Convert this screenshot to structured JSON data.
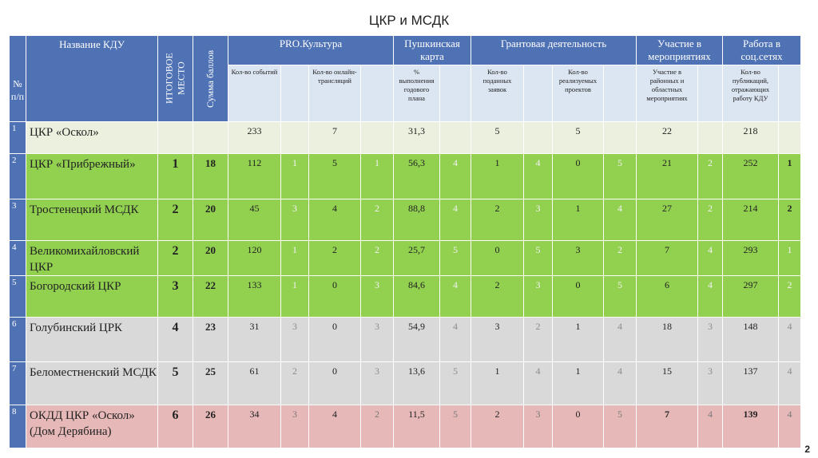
{
  "title": "ЦКР и МСДК",
  "page_number": "2",
  "table": {
    "header": {
      "number": "№ п/п",
      "name": "Название КДУ",
      "place": "ИТОГОВОЕ МЕСТО",
      "sum": "Сумма баллов",
      "groups": [
        "PRO.Культура",
        "Пушкинская карта",
        "Грантовая деятельность",
        "Участие в мероприятиях",
        "Работа в соц.сетях"
      ],
      "subheaders": [
        "Кол-во событий",
        "Кол-во онлайн-трансляций",
        "% выполнения годового плана",
        "Кол-во поданных заявок",
        "Кол-во реализуемых проектов",
        "Участие в районных и областных мероприятиях",
        "Кол-во публикаций, отражающих работу КДУ"
      ]
    },
    "rows": [
      {
        "number": "1",
        "name": "ЦКР «Оскол»",
        "place": null,
        "sum": null,
        "cells": [
          "233",
          null,
          "7",
          null,
          "31,3",
          null,
          "5",
          null,
          "5",
          null,
          "22",
          null,
          "218",
          null
        ]
      },
      {
        "number": "2",
        "name": "ЦКР «Прибрежный»",
        "place": "1",
        "sum": "18",
        "cells": [
          "112",
          "1",
          "5",
          "1",
          "56,3",
          "4",
          "1",
          "4",
          "0",
          "5",
          "21",
          "2",
          "252",
          "1"
        ]
      },
      {
        "number": "3",
        "name": "Тростенецкий МСДК",
        "place": "2",
        "sum": "20",
        "cells": [
          "45",
          "3",
          "4",
          "2",
          "88,8",
          "4",
          "2",
          "3",
          "1",
          "4",
          "27",
          "2",
          "214",
          "2"
        ]
      },
      {
        "number": "4",
        "name": "Великомихайловский ЦКР",
        "place": "2",
        "sum": "20",
        "cells": [
          "120",
          "1",
          "2",
          "2",
          "25,7",
          "5",
          "0",
          "5",
          "3",
          "2",
          "7",
          "4",
          "293",
          "1"
        ]
      },
      {
        "number": "5",
        "name": "Богородский ЦКР",
        "place": "3",
        "sum": "22",
        "cells": [
          "133",
          "1",
          "0",
          "3",
          "84,6",
          "4",
          "2",
          "3",
          "0",
          "5",
          "6",
          "4",
          "297",
          "2"
        ]
      },
      {
        "number": "6",
        "name": "Голубинский ЦРК",
        "place": "4",
        "sum": "23",
        "cells": [
          "31",
          "3",
          "0",
          "3",
          "54,9",
          "4",
          "3",
          "2",
          "1",
          "4",
          "18",
          "3",
          "148",
          "4"
        ]
      },
      {
        "number": "7",
        "name": "Беломестненский МСДК",
        "place": "5",
        "sum": "25",
        "cells": [
          "61",
          "2",
          "0",
          "3",
          "13,6",
          "5",
          "1",
          "4",
          "1",
          "4",
          "15",
          "3",
          "137",
          "4"
        ]
      },
      {
        "number": "8",
        "name": "ОКДД ЦКР «Оскол» (Дом Дерябина)",
        "place": "6",
        "sum": "26",
        "cells": [
          "34",
          "3",
          "4",
          "2",
          "11,5",
          "5",
          "2",
          "3",
          "0",
          "5",
          "7",
          "4",
          "139",
          "4"
        ]
      }
    ]
  }
}
